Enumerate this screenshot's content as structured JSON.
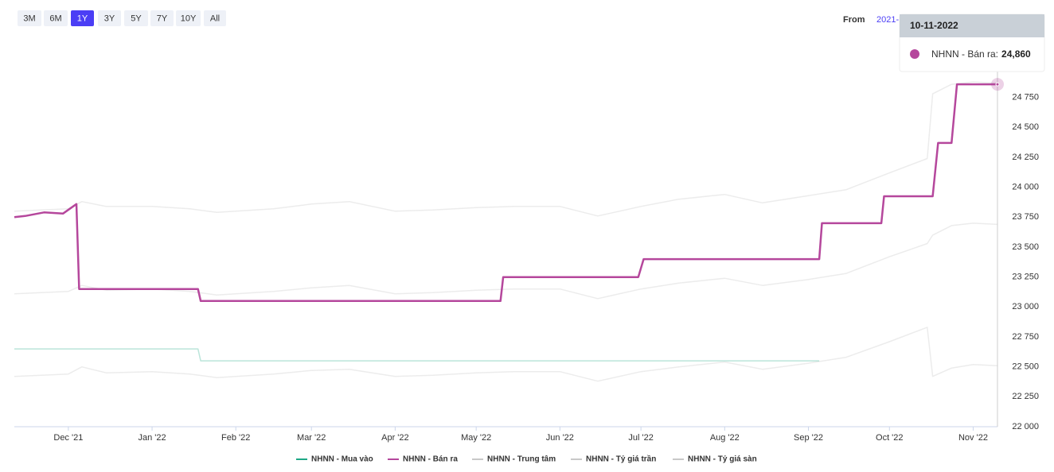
{
  "controls": {
    "ranges": [
      "3M",
      "6M",
      "1Y",
      "3Y",
      "5Y",
      "7Y",
      "10Y",
      "All"
    ],
    "active_range": 2,
    "from_label": "From",
    "from_value": "2021-"
  },
  "chart_data": {
    "type": "line",
    "xlim": [
      "11-11-2021",
      "10-11-2022"
    ],
    "xticks": [
      {
        "value": "01-12-2021",
        "label": "Dec '21"
      },
      {
        "value": "01-01-2022",
        "label": "Jan '22"
      },
      {
        "value": "01-02-2022",
        "label": "Feb '22"
      },
      {
        "value": "01-03-2022",
        "label": "Mar '22"
      },
      {
        "value": "01-04-2022",
        "label": "Apr '22"
      },
      {
        "value": "01-05-2022",
        "label": "May '22"
      },
      {
        "value": "01-06-2022",
        "label": "Jun '22"
      },
      {
        "value": "01-07-2022",
        "label": "Jul '22"
      },
      {
        "value": "01-08-2022",
        "label": "Aug '22"
      },
      {
        "value": "01-09-2022",
        "label": "Sep '22"
      },
      {
        "value": "01-10-2022",
        "label": "Oct '22"
      },
      {
        "value": "01-11-2022",
        "label": "Nov '22"
      }
    ],
    "ylim": [
      22000,
      25000
    ],
    "yticks": [
      {
        "value": 22000,
        "label": "22 000"
      },
      {
        "value": 22250,
        "label": "22 250"
      },
      {
        "value": 22500,
        "label": "22 500"
      },
      {
        "value": 22750,
        "label": "22 750"
      },
      {
        "value": 23000,
        "label": "23 000"
      },
      {
        "value": 23250,
        "label": "23 250"
      },
      {
        "value": 23500,
        "label": "23 500"
      },
      {
        "value": 23750,
        "label": "23 750"
      },
      {
        "value": 24000,
        "label": "24 000"
      },
      {
        "value": 24250,
        "label": "24 250"
      },
      {
        "value": 24500,
        "label": "24 500"
      },
      {
        "value": 24750,
        "label": "24 750"
      }
    ],
    "grid": false,
    "series": [
      {
        "name": "NHNN - Mua vào",
        "color": "#1ea886",
        "dimmed": true,
        "x": [
          "11-11-2021",
          "18-01-2022",
          "19-01-2022",
          "05-09-2022"
        ],
        "values": [
          22650,
          22650,
          22550,
          22550
        ]
      },
      {
        "name": "NHNN - Bán ra",
        "color": "#b5479c",
        "dimmed": false,
        "x": [
          "11-11-2021",
          "15-11-2021",
          "22-11-2021",
          "29-11-2021",
          "04-12-2021",
          "05-12-2021",
          "18-01-2022",
          "19-01-2022",
          "10-05-2022",
          "11-05-2022",
          "30-06-2022",
          "02-07-2022",
          "05-09-2022",
          "06-09-2022",
          "28-09-2022",
          "29-09-2022",
          "17-10-2022",
          "19-10-2022",
          "24-10-2022",
          "26-10-2022",
          "10-11-2022"
        ],
        "values": [
          23750,
          23760,
          23790,
          23780,
          23860,
          23150,
          23150,
          23050,
          23050,
          23250,
          23250,
          23400,
          23400,
          23700,
          23700,
          23925,
          23925,
          24370,
          24370,
          24860,
          24860
        ]
      },
      {
        "name": "NHNN - Trung tâm",
        "color": "#c8c8c8",
        "dimmed": true,
        "x": [
          "11-11-2021",
          "01-12-2021",
          "06-12-2021",
          "15-12-2021",
          "01-01-2022",
          "15-01-2022",
          "25-01-2022",
          "15-02-2022",
          "01-03-2022",
          "15-03-2022",
          "01-04-2022",
          "15-04-2022",
          "01-05-2022",
          "15-05-2022",
          "01-06-2022",
          "15-06-2022",
          "01-07-2022",
          "15-07-2022",
          "01-08-2022",
          "15-08-2022",
          "01-09-2022",
          "15-09-2022",
          "01-10-2022",
          "15-10-2022",
          "17-10-2022",
          "24-10-2022",
          "01-11-2022",
          "10-11-2022"
        ],
        "values": [
          23110,
          23130,
          23180,
          23140,
          23150,
          23130,
          23100,
          23130,
          23160,
          23180,
          23110,
          23120,
          23140,
          23150,
          23150,
          23070,
          23150,
          23200,
          23240,
          23180,
          23230,
          23280,
          23420,
          23530,
          23600,
          23680,
          23700,
          23690
        ]
      },
      {
        "name": "NHNN - Tỷ giá trần",
        "color": "#c8c8c8",
        "dimmed": true,
        "x": [
          "11-11-2021",
          "01-12-2021",
          "06-12-2021",
          "15-12-2021",
          "01-01-2022",
          "15-01-2022",
          "25-01-2022",
          "15-02-2022",
          "01-03-2022",
          "15-03-2022",
          "01-04-2022",
          "15-04-2022",
          "01-05-2022",
          "15-05-2022",
          "01-06-2022",
          "15-06-2022",
          "01-07-2022",
          "15-07-2022",
          "01-08-2022",
          "15-08-2022",
          "01-09-2022",
          "15-09-2022",
          "01-10-2022",
          "15-10-2022",
          "17-10-2022",
          "24-10-2022",
          "01-11-2022",
          "10-11-2022"
        ],
        "values": [
          23800,
          23820,
          23880,
          23840,
          23840,
          23820,
          23790,
          23820,
          23860,
          23880,
          23800,
          23810,
          23830,
          23840,
          23840,
          23760,
          23840,
          23900,
          23940,
          23870,
          23930,
          23980,
          24120,
          24240,
          24780,
          24860,
          24880,
          24870
        ]
      },
      {
        "name": "NHNN - Tỷ giá sàn",
        "color": "#c8c8c8",
        "dimmed": true,
        "x": [
          "11-11-2021",
          "01-12-2021",
          "06-12-2021",
          "15-12-2021",
          "01-01-2022",
          "15-01-2022",
          "25-01-2022",
          "15-02-2022",
          "01-03-2022",
          "15-03-2022",
          "01-04-2022",
          "15-04-2022",
          "01-05-2022",
          "15-05-2022",
          "01-06-2022",
          "15-06-2022",
          "01-07-2022",
          "15-07-2022",
          "01-08-2022",
          "15-08-2022",
          "01-09-2022",
          "15-09-2022",
          "01-10-2022",
          "15-10-2022",
          "17-10-2022",
          "24-10-2022",
          "01-11-2022",
          "10-11-2022"
        ],
        "values": [
          22420,
          22440,
          22500,
          22450,
          22460,
          22440,
          22410,
          22440,
          22470,
          22480,
          22420,
          22430,
          22450,
          22460,
          22460,
          22380,
          22460,
          22500,
          22540,
          22480,
          22530,
          22580,
          22710,
          22830,
          22420,
          22490,
          22520,
          22510
        ]
      }
    ],
    "tooltip": {
      "date": "10-11-2022",
      "series": 1,
      "label": "NHNN - Bán ra:",
      "value": 24860,
      "value_label": "24,860"
    }
  }
}
